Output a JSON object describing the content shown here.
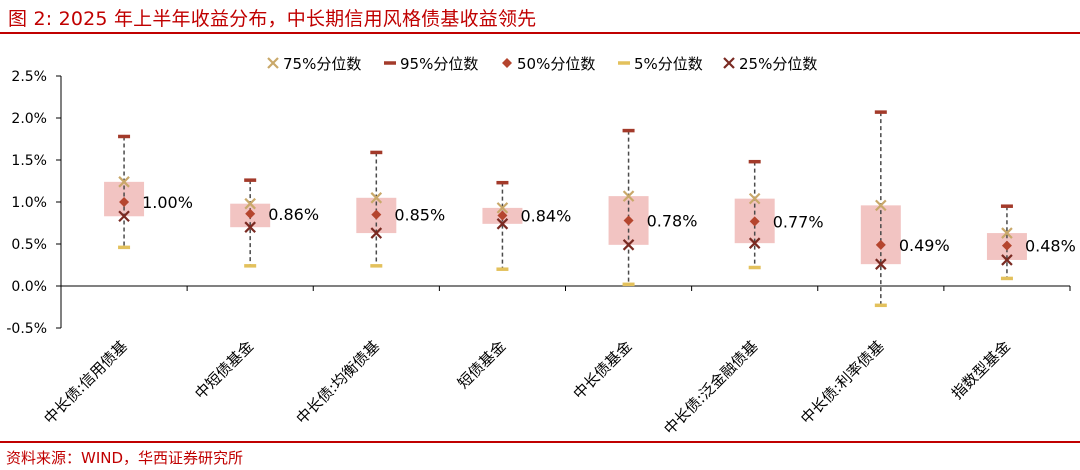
{
  "title": "图 2:  2025 年上半年收益分布，中长期信用风格债基收益领先",
  "source": "资料来源：WIND，华西证券研究所",
  "colors": {
    "brand": "#c00000",
    "box_fill": "#f2c4c2",
    "p75": "#c9a86a",
    "p95": "#a33a2a",
    "p50": "#b5452e",
    "p5": "#e3c15c",
    "p25": "#7a2a22"
  },
  "chart_data": {
    "type": "box",
    "ylim": [
      -0.5,
      2.5
    ],
    "yticks": [
      "-0.5%",
      "0.0%",
      "0.5%",
      "1.0%",
      "1.5%",
      "2.0%",
      "2.5%"
    ],
    "legend": {
      "placement": "top",
      "entries": [
        {
          "key": "p75",
          "label": "75%分位数",
          "marker": "x-light"
        },
        {
          "key": "p95",
          "label": "95%分位数",
          "marker": "dash-dark"
        },
        {
          "key": "p50",
          "label": "50%分位数",
          "marker": "diamond"
        },
        {
          "key": "p5",
          "label": "5%分位数",
          "marker": "dash-light"
        },
        {
          "key": "p25",
          "label": "25%分位数",
          "marker": "x-dark"
        }
      ]
    },
    "categories": [
      "中长债:信用债基",
      "中短债基金",
      "中长债:均衡债基",
      "短债基金",
      "中长债基金",
      "中长债:泛金融债基",
      "中长债:利率债基",
      "指数型基金"
    ],
    "p95": [
      1.78,
      1.26,
      1.59,
      1.23,
      1.85,
      1.48,
      2.07,
      0.95
    ],
    "p75": [
      1.24,
      0.98,
      1.05,
      0.93,
      1.07,
      1.04,
      0.96,
      0.63
    ],
    "p50": [
      1.0,
      0.86,
      0.85,
      0.84,
      0.78,
      0.77,
      0.49,
      0.48
    ],
    "p25": [
      0.83,
      0.7,
      0.63,
      0.74,
      0.49,
      0.51,
      0.26,
      0.31
    ],
    "p5": [
      0.46,
      0.24,
      0.24,
      0.2,
      0.02,
      0.22,
      -0.23,
      0.09
    ],
    "median_labels": [
      "1.00%",
      "0.86%",
      "0.85%",
      "0.84%",
      "0.78%",
      "0.77%",
      "0.49%",
      "0.48%"
    ]
  }
}
